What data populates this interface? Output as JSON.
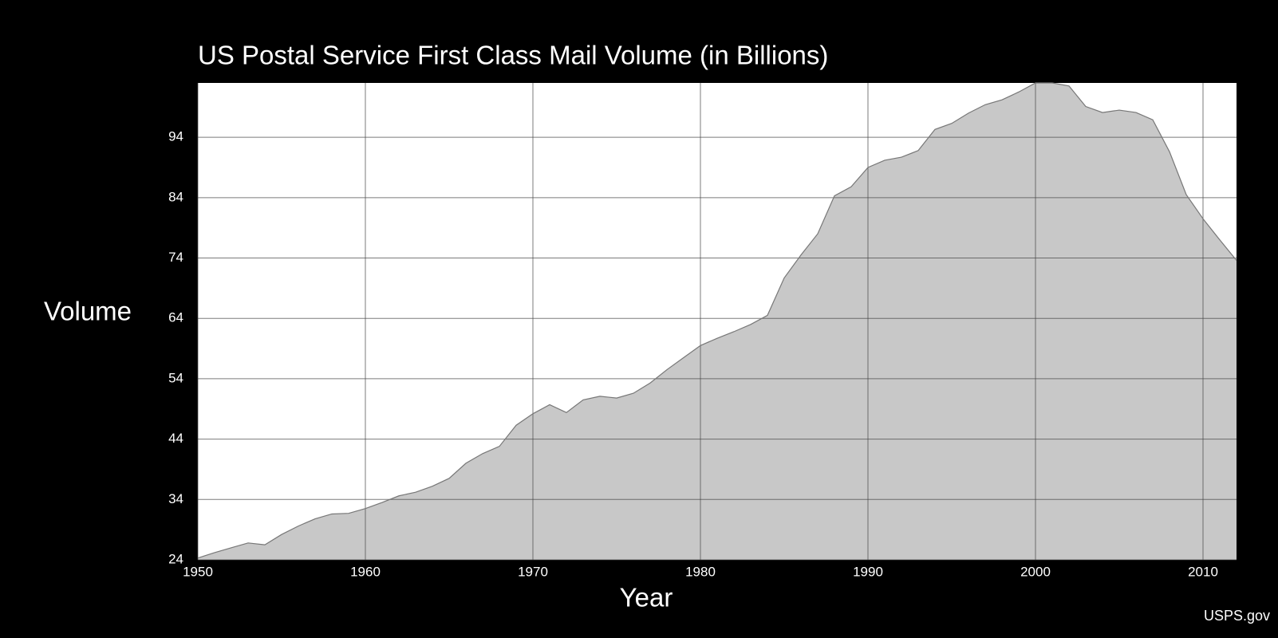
{
  "chart_data": {
    "type": "area",
    "title": "US Postal Service First Class Mail Volume (in Billions)",
    "y_label": "Volume",
    "x_label": "Year",
    "source": "USPS.gov",
    "x": [
      1950,
      1951,
      1952,
      1953,
      1954,
      1955,
      1956,
      1957,
      1958,
      1959,
      1960,
      1961,
      1962,
      1963,
      1964,
      1965,
      1966,
      1967,
      1968,
      1969,
      1970,
      1971,
      1972,
      1973,
      1974,
      1975,
      1976,
      1977,
      1978,
      1979,
      1980,
      1981,
      1982,
      1983,
      1984,
      1985,
      1986,
      1987,
      1988,
      1989,
      1990,
      1991,
      1992,
      1993,
      1994,
      1995,
      1996,
      1997,
      1998,
      1999,
      2000,
      2001,
      2002,
      2003,
      2004,
      2005,
      2006,
      2007,
      2008,
      2009,
      2010,
      2011,
      2012
    ],
    "series": [
      {
        "name": "First Class Mail Volume",
        "color": "#c8c8c8",
        "values": [
          24.3,
          25.2,
          26.0,
          26.8,
          26.5,
          28.2,
          29.6,
          30.8,
          31.6,
          31.7,
          32.5,
          33.5,
          34.6,
          35.2,
          36.2,
          37.5,
          40.0,
          41.6,
          42.8,
          46.3,
          48.2,
          49.7,
          48.4,
          50.5,
          51.1,
          50.8,
          51.6,
          53.3,
          55.5,
          57.5,
          59.5,
          60.7,
          61.8,
          63.0,
          64.5,
          70.7,
          74.5,
          78.0,
          84.3,
          85.8,
          89.0,
          90.2,
          90.7,
          91.8,
          95.3,
          96.3,
          98.0,
          99.4,
          100.2,
          101.5,
          103.0,
          103.0,
          102.5,
          99.1,
          98.1,
          98.5,
          98.1,
          96.9,
          91.6,
          84.5,
          80.5,
          77.0,
          73.6
        ]
      }
    ],
    "xlim": [
      1950,
      2012
    ],
    "xticks": [
      1950,
      1960,
      1970,
      1980,
      1990,
      2000,
      2010
    ],
    "ylim": [
      24,
      103
    ],
    "yticks": [
      24,
      34,
      44,
      54,
      64,
      74,
      84,
      94
    ],
    "grid": true
  }
}
